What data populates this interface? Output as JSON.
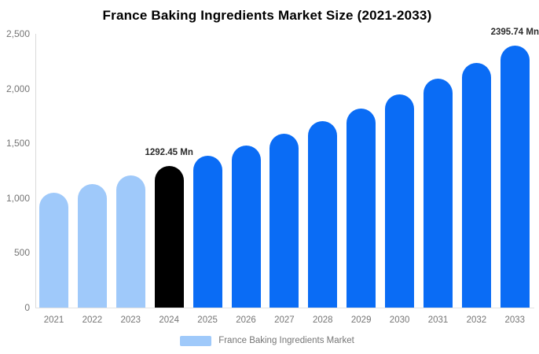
{
  "title": "France Baking Ingredients Market Size (2021-2033)",
  "chart_data": {
    "type": "bar",
    "title": "France Baking Ingredients Market Size (2021-2033)",
    "categories": [
      "2021",
      "2022",
      "2023",
      "2024",
      "2025",
      "2026",
      "2027",
      "2028",
      "2029",
      "2030",
      "2031",
      "2032",
      "2033"
    ],
    "values": [
      1052.1,
      1126.8,
      1206.8,
      1292.45,
      1384.2,
      1482.4,
      1587.7,
      1700.3,
      1821.0,
      1950.2,
      2088.6,
      2236.8,
      2395.74
    ],
    "unit": "Mn",
    "xlabel": "",
    "ylabel": "",
    "ylim": [
      0,
      2500
    ],
    "yticks": [
      0,
      500,
      1000,
      1500,
      2000,
      2500
    ],
    "ytick_labels": [
      "0",
      "500",
      "1,000",
      "1,500",
      "2,000",
      "2,500"
    ],
    "grid": false,
    "legend_position": "bottom",
    "bar_colors": [
      "#9fc9fa",
      "#9fc9fa",
      "#9fc9fa",
      "#000000",
      "#0a6cf5",
      "#0a6cf5",
      "#0a6cf5",
      "#0a6cf5",
      "#0a6cf5",
      "#0a6cf5",
      "#0a6cf5",
      "#0a6cf5",
      "#0a6cf5"
    ],
    "annotations": [
      {
        "category": "2024",
        "text": "1292.45 Mn"
      },
      {
        "category": "2033",
        "text": "2395.74 Mn"
      }
    ],
    "legend": [
      {
        "label": "France Baking Ingredients Market",
        "color": "#9fc9fa"
      }
    ]
  },
  "colors": {
    "historical_bar": "#9fc9fa",
    "base_year_bar": "#000000",
    "forecast_bar": "#0a6cf5",
    "axis_line": "#d9d9d9",
    "tick_text": "#757575",
    "data_label_text": "#2b2b2b",
    "background": "#ffffff"
  }
}
